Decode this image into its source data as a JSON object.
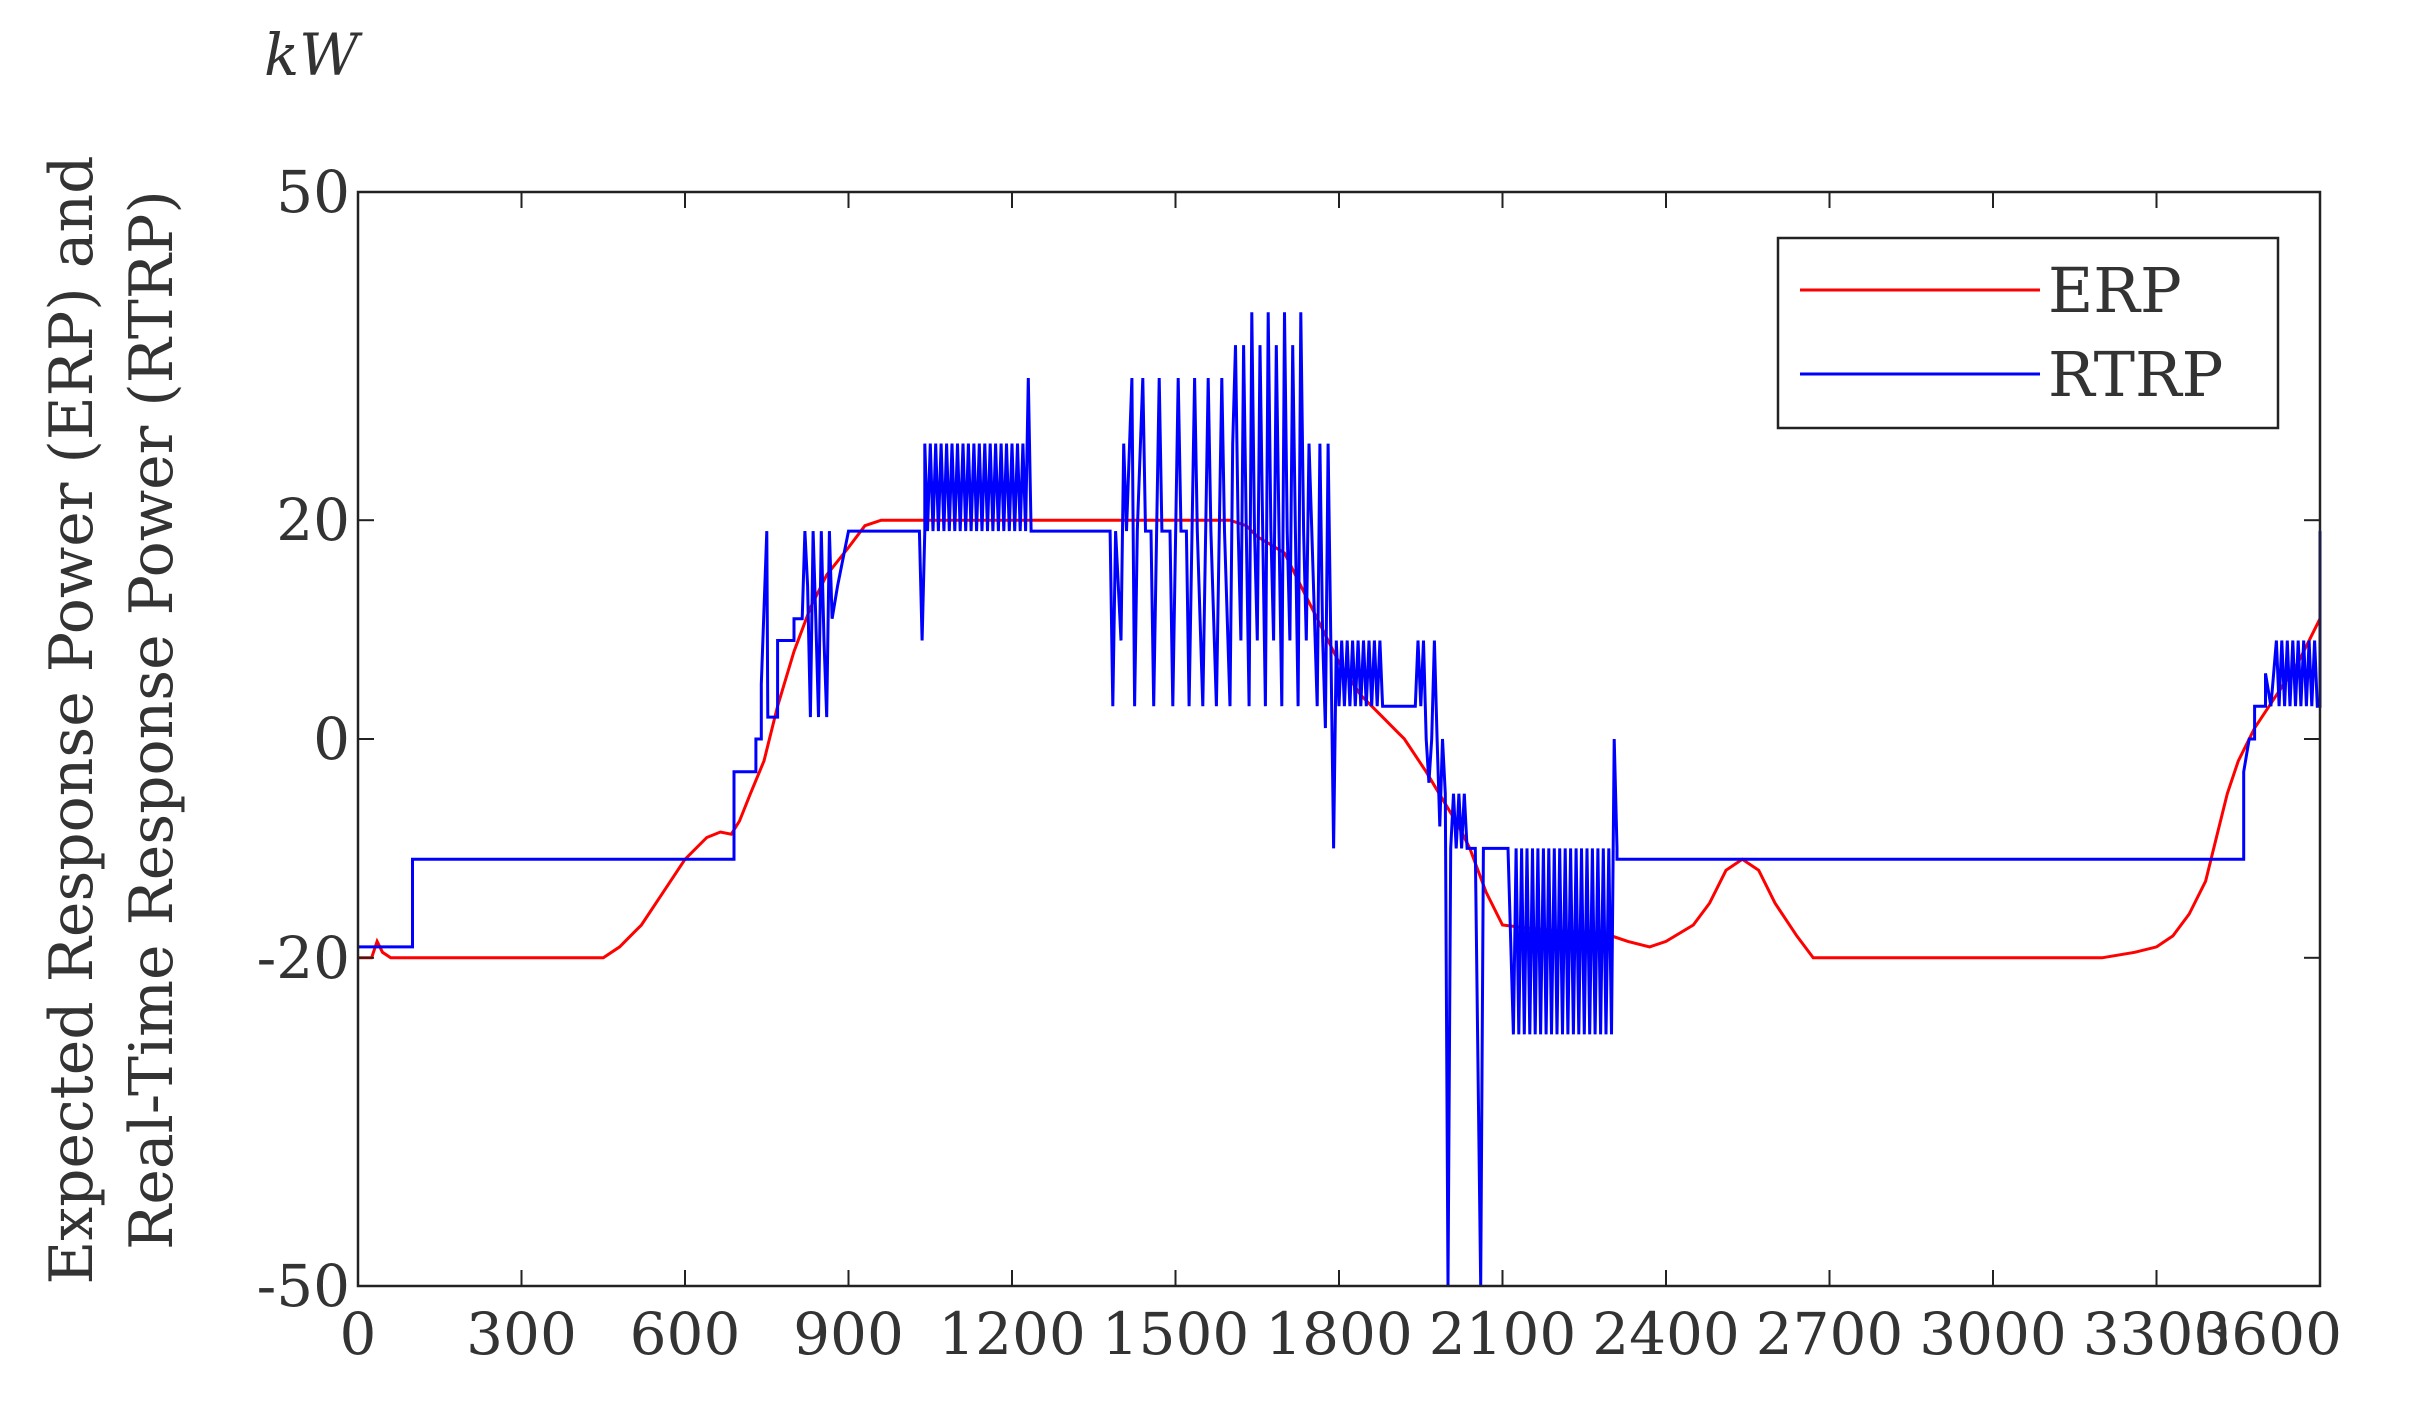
{
  "chart_data": {
    "type": "line",
    "unit_label": "kW",
    "ylabel_lines": [
      "Expected Response Power (ERP) and",
      "Real-Time Response Power (RTRP)"
    ],
    "xlabel": "",
    "xlim": [
      0,
      3600
    ],
    "ylim": [
      -50,
      50
    ],
    "x_ticks": [
      0,
      300,
      600,
      900,
      1200,
      1500,
      1800,
      2100,
      2400,
      2700,
      3000,
      3300,
      3600
    ],
    "y_ticks": [
      -50,
      -20,
      0,
      20,
      50
    ],
    "grid": false,
    "legend_position": "top-right",
    "series": [
      {
        "name": "ERP",
        "color": "#ff0000",
        "points": [
          [
            0,
            -20
          ],
          [
            25,
            -20
          ],
          [
            35,
            -18.5
          ],
          [
            45,
            -19.5
          ],
          [
            60,
            -20
          ],
          [
            300,
            -20
          ],
          [
            450,
            -20
          ],
          [
            480,
            -19
          ],
          [
            520,
            -17
          ],
          [
            560,
            -14
          ],
          [
            600,
            -11
          ],
          [
            640,
            -9
          ],
          [
            665,
            -8.5
          ],
          [
            685,
            -8.7
          ],
          [
            700,
            -7.5
          ],
          [
            720,
            -5
          ],
          [
            745,
            -2
          ],
          [
            770,
            3
          ],
          [
            800,
            8
          ],
          [
            830,
            12
          ],
          [
            860,
            15
          ],
          [
            900,
            17.5
          ],
          [
            930,
            19.5
          ],
          [
            960,
            20
          ],
          [
            1200,
            20
          ],
          [
            1500,
            20
          ],
          [
            1600,
            20
          ],
          [
            1630,
            19.5
          ],
          [
            1650,
            18.5
          ],
          [
            1700,
            17
          ],
          [
            1730,
            14
          ],
          [
            1760,
            11
          ],
          [
            1800,
            7
          ],
          [
            1840,
            4
          ],
          [
            1880,
            2
          ],
          [
            1920,
            0
          ],
          [
            1960,
            -3
          ],
          [
            1990,
            -5.5
          ],
          [
            2020,
            -8
          ],
          [
            2040,
            -10
          ],
          [
            2070,
            -14
          ],
          [
            2100,
            -17
          ],
          [
            2150,
            -17.3
          ],
          [
            2200,
            -17.5
          ],
          [
            2260,
            -17.7
          ],
          [
            2300,
            -18
          ],
          [
            2330,
            -18.5
          ],
          [
            2370,
            -19
          ],
          [
            2400,
            -18.5
          ],
          [
            2450,
            -17
          ],
          [
            2480,
            -15
          ],
          [
            2510,
            -12
          ],
          [
            2540,
            -11
          ],
          [
            2570,
            -12
          ],
          [
            2600,
            -15
          ],
          [
            2640,
            -18
          ],
          [
            2670,
            -20
          ],
          [
            3000,
            -20
          ],
          [
            3200,
            -20
          ],
          [
            3260,
            -19.5
          ],
          [
            3300,
            -19
          ],
          [
            3330,
            -18
          ],
          [
            3360,
            -16
          ],
          [
            3390,
            -13
          ],
          [
            3410,
            -9
          ],
          [
            3430,
            -5
          ],
          [
            3450,
            -2
          ],
          [
            3480,
            1
          ],
          [
            3520,
            4
          ],
          [
            3560,
            7
          ],
          [
            3600,
            11
          ]
        ]
      },
      {
        "name": "RTRP",
        "color": "#0000ff",
        "points": [
          [
            0,
            -19
          ],
          [
            100,
            -19
          ],
          [
            100,
            -11
          ],
          [
            690,
            -11
          ],
          [
            690,
            -3
          ],
          [
            730,
            -3
          ],
          [
            730,
            0
          ],
          [
            740,
            0
          ],
          [
            740,
            5
          ],
          [
            750,
            19
          ],
          [
            752,
            2
          ],
          [
            770,
            2
          ],
          [
            770,
            9
          ],
          [
            800,
            9
          ],
          [
            800,
            11
          ],
          [
            815,
            11
          ],
          [
            820,
            19
          ],
          [
            825,
            14
          ],
          [
            830,
            2
          ],
          [
            835,
            19
          ],
          [
            840,
            11
          ],
          [
            845,
            2
          ],
          [
            850,
            19
          ],
          [
            855,
            9
          ],
          [
            860,
            2
          ],
          [
            865,
            19
          ],
          [
            870,
            11
          ],
          [
            880,
            14
          ],
          [
            900,
            19
          ],
          [
            1010,
            19
          ],
          [
            1030,
            19
          ],
          [
            1035,
            9
          ],
          [
            1040,
            19
          ],
          [
            1040,
            27
          ],
          [
            1045,
            19
          ],
          [
            1050,
            27
          ],
          [
            1055,
            19
          ],
          [
            1060,
            27
          ],
          [
            1065,
            19
          ],
          [
            1070,
            27
          ],
          [
            1075,
            19
          ],
          [
            1080,
            27
          ],
          [
            1085,
            19
          ],
          [
            1090,
            27
          ],
          [
            1095,
            19
          ],
          [
            1100,
            27
          ],
          [
            1105,
            19
          ],
          [
            1110,
            27
          ],
          [
            1115,
            19
          ],
          [
            1120,
            27
          ],
          [
            1125,
            19
          ],
          [
            1130,
            27
          ],
          [
            1135,
            19
          ],
          [
            1140,
            27
          ],
          [
            1145,
            19
          ],
          [
            1150,
            27
          ],
          [
            1155,
            19
          ],
          [
            1160,
            27
          ],
          [
            1165,
            19
          ],
          [
            1170,
            27
          ],
          [
            1175,
            19
          ],
          [
            1180,
            27
          ],
          [
            1185,
            19
          ],
          [
            1190,
            27
          ],
          [
            1195,
            19
          ],
          [
            1200,
            27
          ],
          [
            1205,
            19
          ],
          [
            1210,
            27
          ],
          [
            1215,
            19
          ],
          [
            1220,
            27
          ],
          [
            1225,
            19
          ],
          [
            1230,
            33
          ],
          [
            1235,
            19
          ],
          [
            1380,
            19
          ],
          [
            1385,
            3
          ],
          [
            1390,
            19
          ],
          [
            1400,
            9
          ],
          [
            1405,
            27
          ],
          [
            1410,
            19
          ],
          [
            1420,
            33
          ],
          [
            1425,
            3
          ],
          [
            1430,
            19
          ],
          [
            1440,
            33
          ],
          [
            1445,
            19
          ],
          [
            1455,
            19
          ],
          [
            1460,
            3
          ],
          [
            1470,
            33
          ],
          [
            1475,
            19
          ],
          [
            1490,
            19
          ],
          [
            1495,
            3
          ],
          [
            1505,
            33
          ],
          [
            1510,
            19
          ],
          [
            1520,
            19
          ],
          [
            1525,
            3
          ],
          [
            1535,
            33
          ],
          [
            1540,
            19
          ],
          [
            1550,
            3
          ],
          [
            1560,
            33
          ],
          [
            1565,
            19
          ],
          [
            1575,
            3
          ],
          [
            1585,
            33
          ],
          [
            1590,
            19
          ],
          [
            1600,
            3
          ],
          [
            1605,
            27
          ],
          [
            1610,
            36
          ],
          [
            1615,
            19
          ],
          [
            1620,
            9
          ],
          [
            1625,
            36
          ],
          [
            1630,
            19
          ],
          [
            1635,
            3
          ],
          [
            1640,
            39
          ],
          [
            1645,
            19
          ],
          [
            1650,
            9
          ],
          [
            1655,
            36
          ],
          [
            1660,
            19
          ],
          [
            1665,
            3
          ],
          [
            1670,
            39
          ],
          [
            1675,
            19
          ],
          [
            1680,
            9
          ],
          [
            1685,
            36
          ],
          [
            1690,
            19
          ],
          [
            1695,
            3
          ],
          [
            1700,
            39
          ],
          [
            1705,
            19
          ],
          [
            1710,
            9
          ],
          [
            1715,
            36
          ],
          [
            1720,
            19
          ],
          [
            1725,
            3
          ],
          [
            1730,
            39
          ],
          [
            1735,
            19
          ],
          [
            1740,
            9
          ],
          [
            1745,
            27
          ],
          [
            1750,
            19
          ],
          [
            1760,
            3
          ],
          [
            1765,
            27
          ],
          [
            1770,
            9
          ],
          [
            1775,
            1
          ],
          [
            1780,
            27
          ],
          [
            1785,
            9
          ],
          [
            1790,
            -10
          ],
          [
            1795,
            9
          ],
          [
            1800,
            3
          ],
          [
            1805,
            9
          ],
          [
            1810,
            3
          ],
          [
            1815,
            9
          ],
          [
            1820,
            3
          ],
          [
            1825,
            9
          ],
          [
            1830,
            3
          ],
          [
            1835,
            9
          ],
          [
            1840,
            3
          ],
          [
            1845,
            9
          ],
          [
            1850,
            3
          ],
          [
            1855,
            9
          ],
          [
            1860,
            3
          ],
          [
            1865,
            9
          ],
          [
            1870,
            3
          ],
          [
            1875,
            9
          ],
          [
            1880,
            3
          ],
          [
            1900,
            3
          ],
          [
            1940,
            3
          ],
          [
            1945,
            9
          ],
          [
            1950,
            3
          ],
          [
            1955,
            9
          ],
          [
            1960,
            0
          ],
          [
            1965,
            -4
          ],
          [
            1970,
            0
          ],
          [
            1975,
            9
          ],
          [
            1980,
            0
          ],
          [
            1985,
            -8
          ],
          [
            1990,
            0
          ],
          [
            1995,
            -5
          ],
          [
            2000,
            -50
          ],
          [
            2005,
            -10
          ],
          [
            2010,
            -5
          ],
          [
            2015,
            -10
          ],
          [
            2020,
            -5
          ],
          [
            2025,
            -10
          ],
          [
            2030,
            -5
          ],
          [
            2035,
            -10
          ],
          [
            2040,
            -10
          ],
          [
            2050,
            -10
          ],
          [
            2060,
            -50
          ],
          [
            2065,
            -10
          ],
          [
            2070,
            -10
          ],
          [
            2080,
            -10
          ],
          [
            2090,
            -10
          ],
          [
            2100,
            -10
          ],
          [
            2110,
            -10
          ],
          [
            2120,
            -27
          ],
          [
            2125,
            -10
          ],
          [
            2130,
            -27
          ],
          [
            2135,
            -10
          ],
          [
            2140,
            -27
          ],
          [
            2145,
            -10
          ],
          [
            2150,
            -27
          ],
          [
            2155,
            -10
          ],
          [
            2160,
            -27
          ],
          [
            2165,
            -10
          ],
          [
            2170,
            -27
          ],
          [
            2175,
            -10
          ],
          [
            2180,
            -27
          ],
          [
            2185,
            -10
          ],
          [
            2190,
            -27
          ],
          [
            2195,
            -10
          ],
          [
            2200,
            -27
          ],
          [
            2205,
            -10
          ],
          [
            2210,
            -27
          ],
          [
            2215,
            -10
          ],
          [
            2220,
            -27
          ],
          [
            2225,
            -10
          ],
          [
            2230,
            -27
          ],
          [
            2235,
            -10
          ],
          [
            2240,
            -27
          ],
          [
            2245,
            -10
          ],
          [
            2250,
            -27
          ],
          [
            2255,
            -10
          ],
          [
            2260,
            -27
          ],
          [
            2265,
            -10
          ],
          [
            2270,
            -27
          ],
          [
            2275,
            -10
          ],
          [
            2280,
            -27
          ],
          [
            2285,
            -10
          ],
          [
            2290,
            -27
          ],
          [
            2295,
            -10
          ],
          [
            2300,
            -27
          ],
          [
            2305,
            0
          ],
          [
            2310,
            -10
          ],
          [
            2310,
            -11
          ],
          [
            3460,
            -11
          ],
          [
            3460,
            -3
          ],
          [
            3470,
            0
          ],
          [
            3480,
            0
          ],
          [
            3480,
            3
          ],
          [
            3500,
            3
          ],
          [
            3500,
            6
          ],
          [
            3510,
            3
          ],
          [
            3520,
            9
          ],
          [
            3525,
            3
          ],
          [
            3530,
            9
          ],
          [
            3535,
            3
          ],
          [
            3540,
            9
          ],
          [
            3545,
            3
          ],
          [
            3550,
            9
          ],
          [
            3555,
            3
          ],
          [
            3560,
            9
          ],
          [
            3565,
            3
          ],
          [
            3570,
            9
          ],
          [
            3575,
            3
          ],
          [
            3580,
            9
          ],
          [
            3585,
            3
          ],
          [
            3590,
            9
          ],
          [
            3595,
            3
          ],
          [
            3600,
            3
          ],
          [
            3600,
            19
          ]
        ]
      }
    ]
  }
}
